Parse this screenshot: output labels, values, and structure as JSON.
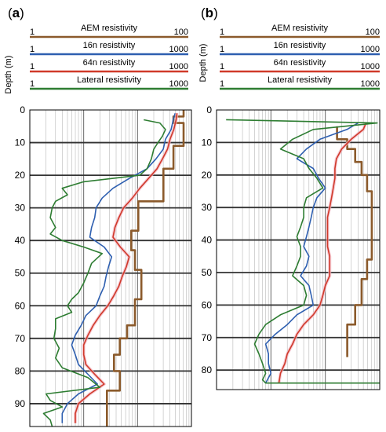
{
  "chart_data": [
    {
      "type": "line",
      "panel_label": "(a)",
      "panel_letter": "a",
      "ylabel": "Depth (m)",
      "ylim": [
        0,
        97
      ],
      "y_ticks": [
        0,
        10,
        20,
        30,
        40,
        50,
        60,
        70,
        80,
        90
      ],
      "y_tick_labels": [
        "0",
        "10",
        "20",
        "30",
        "40",
        "50",
        "60",
        "70",
        "80",
        "90"
      ],
      "x_scale": "log",
      "legend": [
        {
          "name": "AEM resistivity",
          "min": "1",
          "max": "100",
          "color": "#8b5a2b"
        },
        {
          "name": "16n resistivity",
          "min": "1",
          "max": "1000",
          "color": "#2e5fb0"
        },
        {
          "name": "64n resistivity",
          "min": "1",
          "max": "1000",
          "color": "#d03a2a"
        },
        {
          "name": "Lateral resistivity",
          "min": "1",
          "max": "1000",
          "color": "#2e7d32"
        }
      ],
      "series": [
        {
          "name": "AEM resistivity",
          "color": "#8b5a2b",
          "xmax": 100,
          "style": "step",
          "points": [
            [
              80,
              0
            ],
            [
              80,
              2
            ],
            [
              60,
              2
            ],
            [
              60,
              4
            ],
            [
              80,
              4
            ],
            [
              80,
              11
            ],
            [
              60,
              11
            ],
            [
              60,
              18
            ],
            [
              45,
              18
            ],
            [
              45,
              28
            ],
            [
              22,
              28
            ],
            [
              22,
              37
            ],
            [
              18,
              37
            ],
            [
              18,
              43
            ],
            [
              20,
              43
            ],
            [
              20,
              49
            ],
            [
              24,
              49
            ],
            [
              24,
              58
            ],
            [
              20,
              58
            ],
            [
              20,
              66
            ],
            [
              16,
              66
            ],
            [
              16,
              70
            ],
            [
              13,
              70
            ],
            [
              13,
              75
            ],
            [
              11,
              75
            ],
            [
              11,
              80
            ],
            [
              13,
              80
            ],
            [
              13,
              86
            ],
            [
              9,
              86
            ],
            [
              9,
              97
            ]
          ]
        },
        {
          "name": "16n resistivity",
          "color": "#2e5fb0",
          "xmax": 1000,
          "points": [
            [
              500,
              1
            ],
            [
              460,
              3
            ],
            [
              420,
              6
            ],
            [
              330,
              9
            ],
            [
              300,
              12
            ],
            [
              220,
              15
            ],
            [
              150,
              18
            ],
            [
              70,
              21
            ],
            [
              35,
              24
            ],
            [
              22,
              27
            ],
            [
              17,
              30
            ],
            [
              16,
              33
            ],
            [
              14,
              36
            ],
            [
              13,
              39
            ],
            [
              24,
              42
            ],
            [
              33,
              45
            ],
            [
              29,
              48
            ],
            [
              26,
              51
            ],
            [
              24,
              54
            ],
            [
              20,
              57
            ],
            [
              17,
              60
            ],
            [
              11,
              63
            ],
            [
              9,
              66
            ],
            [
              7,
              69
            ],
            [
              6,
              72
            ],
            [
              7,
              75
            ],
            [
              8,
              78
            ],
            [
              12,
              81
            ],
            [
              18,
              84
            ],
            [
              8,
              87
            ],
            [
              5,
              90
            ],
            [
              4,
              93
            ],
            [
              4,
              96
            ]
          ]
        },
        {
          "name": "64n resistivity",
          "color": "#d03a2a",
          "xmax": 1000,
          "points": [
            [
              540,
              1
            ],
            [
              520,
              3
            ],
            [
              470,
              6
            ],
            [
              400,
              9
            ],
            [
              360,
              12
            ],
            [
              290,
              15
            ],
            [
              230,
              18
            ],
            [
              160,
              21
            ],
            [
              110,
              24
            ],
            [
              80,
              27
            ],
            [
              55,
              30
            ],
            [
              45,
              33
            ],
            [
              38,
              36
            ],
            [
              35,
              39
            ],
            [
              48,
              42
            ],
            [
              70,
              45
            ],
            [
              62,
              48
            ],
            [
              52,
              51
            ],
            [
              45,
              54
            ],
            [
              36,
              57
            ],
            [
              28,
              60
            ],
            [
              20,
              63
            ],
            [
              15,
              66
            ],
            [
              12,
              69
            ],
            [
              10,
              72
            ],
            [
              10,
              75
            ],
            [
              11,
              78
            ],
            [
              16,
              81
            ],
            [
              24,
              84
            ],
            [
              13,
              87
            ],
            [
              8,
              90
            ],
            [
              7,
              93
            ],
            [
              7,
              96
            ]
          ]
        },
        {
          "name": "Lateral resistivity",
          "color": "#2e7d32",
          "xmax": 1000,
          "points": [
            [
              130,
              3
            ],
            [
              260,
              4
            ],
            [
              330,
              6
            ],
            [
              290,
              8
            ],
            [
              240,
              10
            ],
            [
              200,
              12
            ],
            [
              180,
              15
            ],
            [
              150,
              18
            ],
            [
              110,
              20
            ],
            [
              10,
              22
            ],
            [
              4,
              24
            ],
            [
              5,
              26
            ],
            [
              3,
              28
            ],
            [
              2.6,
              30
            ],
            [
              2.4,
              33
            ],
            [
              3,
              36
            ],
            [
              2.4,
              38
            ],
            [
              4,
              40
            ],
            [
              10,
              42
            ],
            [
              22,
              44
            ],
            [
              14,
              47
            ],
            [
              12,
              50
            ],
            [
              10,
              53
            ],
            [
              8,
              56
            ],
            [
              6,
              58
            ],
            [
              5,
              60
            ],
            [
              6,
              62
            ],
            [
              3,
              64
            ],
            [
              3,
              67
            ],
            [
              2.8,
              70
            ],
            [
              3.5,
              73
            ],
            [
              3,
              76
            ],
            [
              4,
              79
            ],
            [
              12,
              82
            ],
            [
              20,
              85
            ],
            [
              2,
              87
            ],
            [
              2.4,
              89
            ],
            [
              4,
              91
            ],
            [
              1.8,
              93
            ],
            [
              2.4,
              95
            ],
            [
              2.6,
              97
            ]
          ]
        }
      ]
    },
    {
      "type": "line",
      "panel_label": "(b)",
      "panel_letter": "b",
      "ylabel": "Depth (m)",
      "ylim": [
        0,
        86
      ],
      "y_ticks": [
        0,
        10,
        20,
        30,
        40,
        50,
        60,
        70,
        80
      ],
      "y_tick_labels": [
        "0",
        "10",
        "20",
        "30",
        "40",
        "50",
        "60",
        "70",
        "80"
      ],
      "x_scale": "log",
      "legend": [
        {
          "name": "AEM resistivity",
          "min": "1",
          "max": "100",
          "color": "#8b5a2b"
        },
        {
          "name": "16n resistivity",
          "min": "1",
          "max": "1000",
          "color": "#2e5fb0"
        },
        {
          "name": "64n resistivity",
          "min": "1",
          "max": "1000",
          "color": "#d03a2a"
        },
        {
          "name": "Lateral resistivity",
          "min": "1",
          "max": "1000",
          "color": "#2e7d32"
        }
      ],
      "series": [
        {
          "name": "AEM resistivity",
          "color": "#8b5a2b",
          "xmax": 100,
          "style": "step",
          "points": [
            [
              30,
              5
            ],
            [
              30,
              9
            ],
            [
              40,
              9
            ],
            [
              40,
              12
            ],
            [
              50,
              12
            ],
            [
              50,
              16
            ],
            [
              60,
              16
            ],
            [
              60,
              20
            ],
            [
              70,
              20
            ],
            [
              70,
              25
            ],
            [
              80,
              25
            ],
            [
              80,
              46
            ],
            [
              70,
              46
            ],
            [
              70,
              52
            ],
            [
              60,
              52
            ],
            [
              60,
              60
            ],
            [
              50,
              60
            ],
            [
              50,
              66
            ],
            [
              40,
              66
            ],
            [
              40,
              76
            ]
          ]
        },
        {
          "name": "16n resistivity",
          "color": "#2e5fb0",
          "xmax": 1000,
          "points": [
            [
              400,
              4
            ],
            [
              250,
              6
            ],
            [
              80,
              9
            ],
            [
              45,
              12
            ],
            [
              30,
              15
            ],
            [
              60,
              18
            ],
            [
              75,
              21
            ],
            [
              100,
              24
            ],
            [
              70,
              27
            ],
            [
              60,
              30
            ],
            [
              55,
              33
            ],
            [
              50,
              36
            ],
            [
              45,
              39
            ],
            [
              40,
              42
            ],
            [
              50,
              45
            ],
            [
              45,
              48
            ],
            [
              35,
              51
            ],
            [
              50,
              54
            ],
            [
              55,
              57
            ],
            [
              60,
              60
            ],
            [
              30,
              63
            ],
            [
              20,
              66
            ],
            [
              12,
              69
            ],
            [
              8,
              72
            ],
            [
              9,
              75
            ],
            [
              9,
              78
            ],
            [
              10,
              81
            ],
            [
              8,
              84
            ]
          ]
        },
        {
          "name": "64n resistivity",
          "color": "#d03a2a",
          "xmax": 1000,
          "points": [
            [
              560,
              4
            ],
            [
              500,
              6
            ],
            [
              300,
              9
            ],
            [
              200,
              12
            ],
            [
              160,
              15
            ],
            [
              150,
              18
            ],
            [
              150,
              21
            ],
            [
              140,
              24
            ],
            [
              130,
              27
            ],
            [
              120,
              30
            ],
            [
              110,
              33
            ],
            [
              110,
              36
            ],
            [
              110,
              39
            ],
            [
              110,
              42
            ],
            [
              120,
              45
            ],
            [
              120,
              48
            ],
            [
              120,
              51
            ],
            [
              100,
              54
            ],
            [
              90,
              57
            ],
            [
              80,
              60
            ],
            [
              60,
              63
            ],
            [
              40,
              66
            ],
            [
              30,
              69
            ],
            [
              25,
              72
            ],
            [
              20,
              75
            ],
            [
              18,
              78
            ],
            [
              15,
              81
            ],
            [
              14,
              84
            ]
          ]
        },
        {
          "name": "Lateral resistivity",
          "color": "#2e7d32",
          "xmax": 1000,
          "points": [
            [
              1.5,
              3
            ],
            [
              900,
              4
            ],
            [
              60,
              6
            ],
            [
              25,
              9
            ],
            [
              15,
              12
            ],
            [
              40,
              15
            ],
            [
              50,
              18
            ],
            [
              70,
              21
            ],
            [
              90,
              24
            ],
            [
              45,
              27
            ],
            [
              40,
              30
            ],
            [
              40,
              33
            ],
            [
              35,
              36
            ],
            [
              30,
              39
            ],
            [
              35,
              42
            ],
            [
              35,
              45
            ],
            [
              30,
              48
            ],
            [
              25,
              51
            ],
            [
              40,
              54
            ],
            [
              45,
              57
            ],
            [
              40,
              60
            ],
            [
              15,
              63
            ],
            [
              8,
              66
            ],
            [
              6,
              69
            ],
            [
              5,
              72
            ],
            [
              6,
              75
            ],
            [
              7,
              78
            ],
            [
              8,
              81
            ],
            [
              7,
              83
            ],
            [
              8,
              84
            ],
            [
              1000,
              84
            ]
          ]
        }
      ]
    }
  ]
}
